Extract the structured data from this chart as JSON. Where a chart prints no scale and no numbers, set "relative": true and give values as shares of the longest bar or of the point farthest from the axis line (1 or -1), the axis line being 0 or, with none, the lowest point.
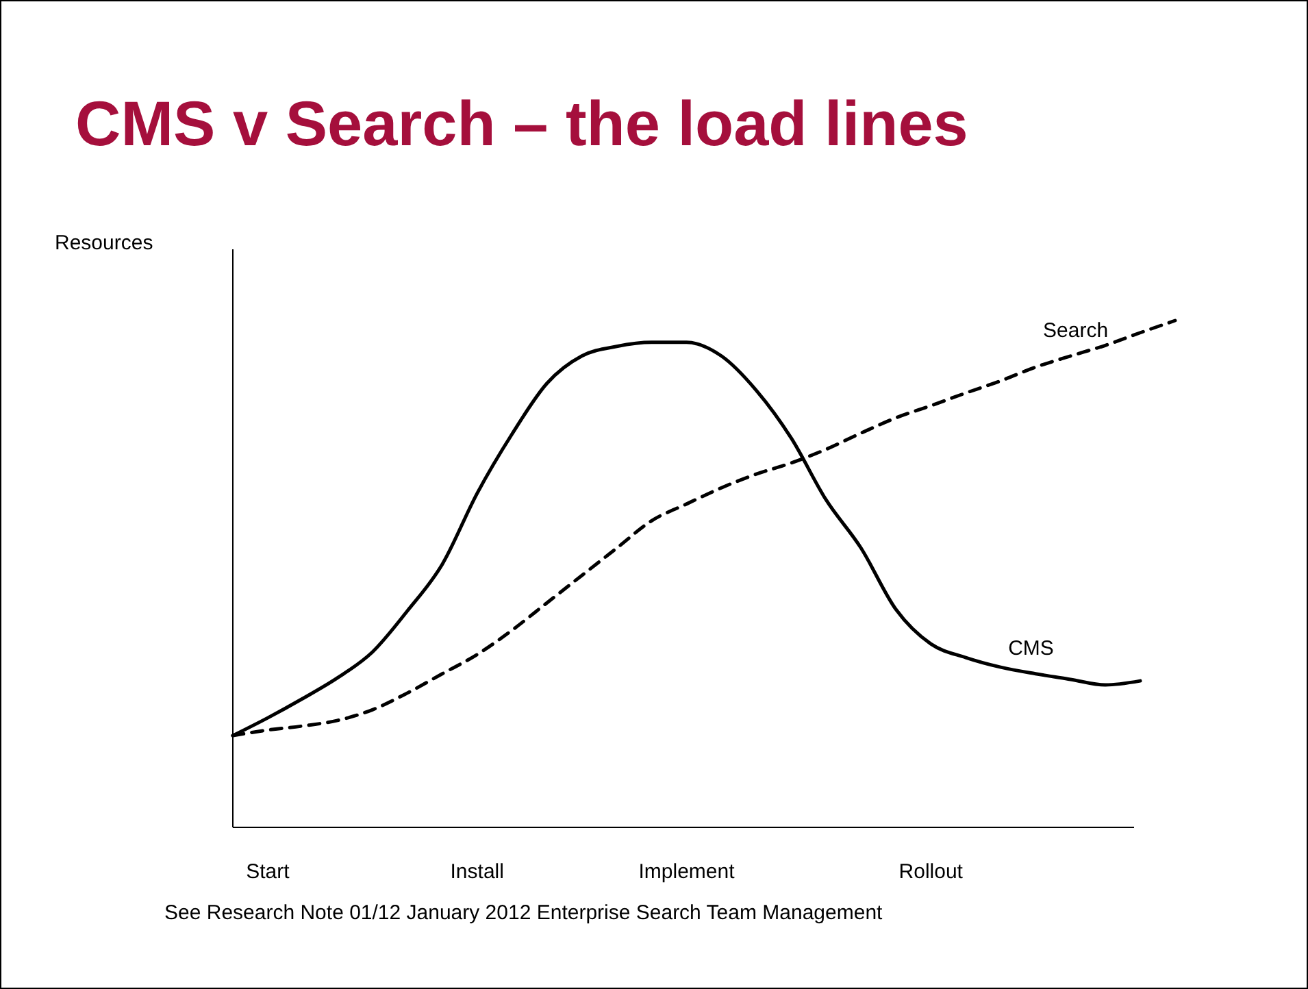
{
  "chart_data": {
    "type": "line",
    "title": "CMS v Search – the load lines",
    "ylabel": "Resources",
    "relative": true,
    "categories": [
      null,
      "Start",
      null,
      null,
      null,
      null,
      null,
      "Install",
      null,
      null,
      null,
      null,
      null,
      "Implement",
      null,
      null,
      null,
      null,
      null,
      null,
      "Rollout",
      null,
      null,
      null,
      null,
      null,
      null,
      null
    ],
    "series": [
      {
        "name": "CMS",
        "color": "#000000",
        "line_style": "solid",
        "values": [
          0.181,
          0.216,
          0.254,
          0.295,
          0.346,
          0.427,
          0.519,
          0.659,
          0.776,
          0.876,
          0.93,
          0.949,
          0.957,
          0.957,
          0.93,
          0.862,
          0.768,
          0.646,
          0.551,
          0.43,
          0.362,
          0.335,
          0.316,
          0.303,
          0.292,
          0.281,
          0.289,
          null
        ]
      },
      {
        "name": "Search",
        "color": "#000000",
        "line_style": "dashed",
        "values": [
          0.181,
          0.192,
          0.2,
          0.211,
          0.232,
          0.265,
          0.303,
          0.341,
          0.389,
          0.443,
          0.497,
          0.551,
          0.605,
          0.638,
          0.67,
          0.697,
          0.719,
          0.746,
          0.778,
          0.808,
          0.832,
          0.857,
          0.881,
          0.908,
          0.93,
          0.951,
          0.976,
          1.0
        ]
      }
    ],
    "legend": false,
    "marker": "none",
    "annotations": [
      "See Research Note 01/12  January 2012 Enterprise Search Team Management"
    ]
  }
}
